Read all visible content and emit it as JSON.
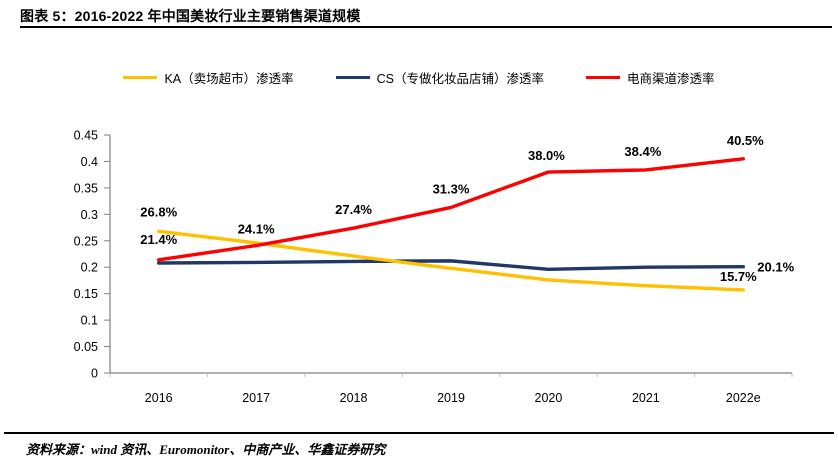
{
  "header": {
    "title": "图表 5：2016-2022 年中国美妆行业主要销售渠道规模"
  },
  "footer": {
    "source": "资料来源：wind 资讯、Euromonitor、中商产业、华鑫证券研究"
  },
  "colors": {
    "ka_line": "#FFC000",
    "cs_line": "#1F3864",
    "ecommerce_line": "#FF0000",
    "axis": "#808080",
    "minor_tick": "#BFBFBF",
    "text": "#000000"
  },
  "chart_data": {
    "type": "line",
    "title": "2016-2022 年中国美妆行业主要销售渠道规模",
    "xlabel": "",
    "ylabel": "",
    "categories": [
      "2016",
      "2017",
      "2018",
      "2019",
      "2020",
      "2021",
      "2022e"
    ],
    "series": [
      {
        "name": "KA（卖场超市）渗透率",
        "color": "#FFC000",
        "values": [
          0.268,
          0.246,
          0.221,
          0.198,
          0.176,
          0.165,
          0.157
        ],
        "point_labels": [
          {
            "i": 0,
            "text": "26.8%",
            "dx": 0,
            "dy": -15,
            "anchor": "middle"
          },
          {
            "i": 6,
            "text": "15.7%",
            "dx": -5,
            "dy": -9,
            "anchor": "middle"
          }
        ]
      },
      {
        "name": "CS（专做化妆品店铺）渗透率",
        "color": "#1F3864",
        "values": [
          0.208,
          0.209,
          0.211,
          0.212,
          0.196,
          0.2,
          0.201
        ],
        "point_labels": [
          {
            "i": 6,
            "text": "20.1%",
            "dx": 14,
            "dy": 5,
            "anchor": "start"
          }
        ]
      },
      {
        "name": "电商渠道渗透率",
        "color": "#FF0000",
        "values": [
          0.214,
          0.241,
          0.274,
          0.313,
          0.38,
          0.384,
          0.405
        ],
        "point_labels": [
          {
            "i": 0,
            "text": "21.4%",
            "dx": 0,
            "dy": -16,
            "anchor": "middle"
          },
          {
            "i": 1,
            "text": "24.1%",
            "dx": 0,
            "dy": -12,
            "anchor": "middle"
          },
          {
            "i": 2,
            "text": "27.4%",
            "dx": 0,
            "dy": -14,
            "anchor": "middle"
          },
          {
            "i": 3,
            "text": "31.3%",
            "dx": 0,
            "dy": -14,
            "anchor": "middle"
          },
          {
            "i": 4,
            "text": "38.0%",
            "dx": -2,
            "dy": -12,
            "anchor": "middle"
          },
          {
            "i": 5,
            "text": "38.4%",
            "dx": -3,
            "dy": -14,
            "anchor": "middle"
          },
          {
            "i": 6,
            "text": "40.5%",
            "dx": 2,
            "dy": -14,
            "anchor": "middle"
          }
        ]
      }
    ],
    "y_ticks": [
      0,
      0.05,
      0.1,
      0.15,
      0.2,
      0.25,
      0.3,
      0.35,
      0.4,
      0.45
    ],
    "ylim": [
      0,
      0.45
    ],
    "grid": false,
    "legend_position": "top"
  }
}
